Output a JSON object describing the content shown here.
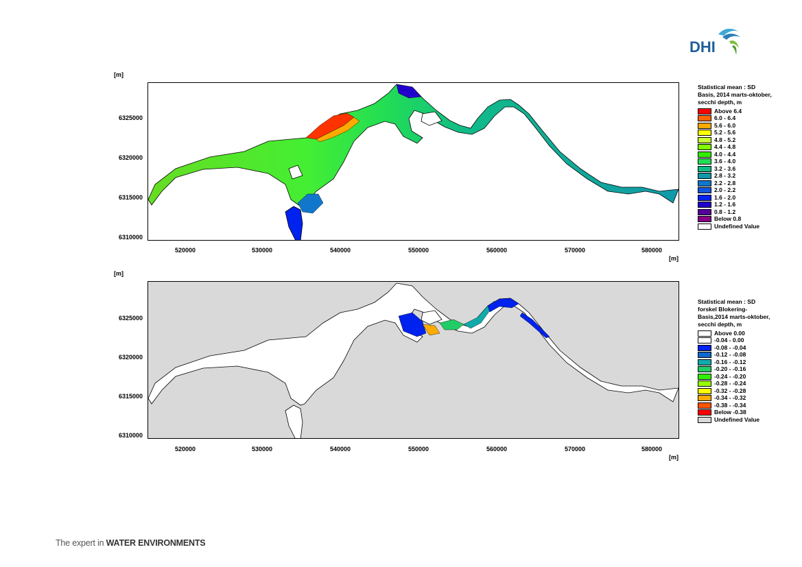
{
  "brand": {
    "logo_text": "DHI",
    "tagline_prefix": "The expert in ",
    "tagline_emph": "WATER ENVIRONMENTS"
  },
  "colors": {
    "undefined_top": "#ffffff",
    "undefined_bottom": "#d9d9d9",
    "outline": "#000000"
  },
  "maps": [
    {
      "id": "basis",
      "unit_y": "[m]",
      "unit_x": "[m]",
      "y_ticks": [
        "6325000",
        "6320000",
        "6315000",
        "6310000"
      ],
      "x_ticks": [
        "520000",
        "530000",
        "540000",
        "550000",
        "560000",
        "570000",
        "580000"
      ],
      "legend_title": "Statistical mean : SD Basis, 2014 marts-oktober, secchi depth, m",
      "legend": [
        {
          "label": "Above 6.4",
          "color": "#ff0000"
        },
        {
          "label": "6.0 - 6.4",
          "color": "#ff6600"
        },
        {
          "label": "5.6 - 6.0",
          "color": "#ffaa00"
        },
        {
          "label": "5.2 - 5.6",
          "color": "#ffff00"
        },
        {
          "label": "4.8 - 5.2",
          "color": "#ccff33"
        },
        {
          "label": "4.4 - 4.8",
          "color": "#80ff00"
        },
        {
          "label": "4.0 - 4.4",
          "color": "#33ee00"
        },
        {
          "label": "3.6 - 4.0",
          "color": "#22dd55"
        },
        {
          "label": "3.2 - 3.6",
          "color": "#11bb88"
        },
        {
          "label": "2.8 - 3.2",
          "color": "#1199aa"
        },
        {
          "label": "2.2 - 2.8",
          "color": "#1177cc"
        },
        {
          "label": "2.0 - 2.2",
          "color": "#1155dd"
        },
        {
          "label": "1.6 - 2.0",
          "color": "#0022ee"
        },
        {
          "label": "1.2 - 1.6",
          "color": "#2200cc"
        },
        {
          "label": "0.8 - 1.2",
          "color": "#550099"
        },
        {
          "label": "Below 0.8",
          "color": "#880088"
        },
        {
          "label": "Undefined Value",
          "color": "#ffffff"
        }
      ]
    },
    {
      "id": "difference",
      "unit_y": "[m]",
      "unit_x": "[m]",
      "y_ticks": [
        "6325000",
        "6320000",
        "6315000",
        "6310000"
      ],
      "x_ticks": [
        "520000",
        "530000",
        "540000",
        "550000",
        "560000",
        "570000",
        "580000"
      ],
      "legend_title": "Statistical mean : SD forskel Blokering-Basis,2014 marts-oktober, secchi depth, m",
      "legend": [
        {
          "label": "Above  0.00",
          "color": "#ffffff"
        },
        {
          "label": "-0.04 -  0.00",
          "color": "#ffffff"
        },
        {
          "label": "-0.08 - -0.04",
          "color": "#0022ee"
        },
        {
          "label": "-0.12 - -0.08",
          "color": "#1166cc"
        },
        {
          "label": "-0.16 - -0.12",
          "color": "#11aaaa"
        },
        {
          "label": "-0.20 - -0.16",
          "color": "#22cc66"
        },
        {
          "label": "-0.24 - -0.20",
          "color": "#33ee00"
        },
        {
          "label": "-0.28 - -0.24",
          "color": "#99ff00"
        },
        {
          "label": "-0.32 - -0.28",
          "color": "#ffff00"
        },
        {
          "label": "-0.34 - -0.32",
          "color": "#ffaa00"
        },
        {
          "label": "-0.38 - -0.34",
          "color": "#ff5500"
        },
        {
          "label": "Below -0.38",
          "color": "#ff0000"
        },
        {
          "label": "Undefined Value",
          "color": "#d9d9d9"
        }
      ]
    }
  ]
}
